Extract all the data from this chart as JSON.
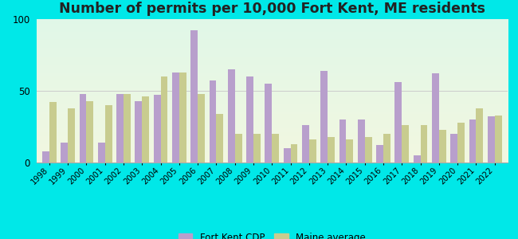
{
  "years": [
    1998,
    1999,
    2000,
    2001,
    2002,
    2003,
    2004,
    2005,
    2006,
    2007,
    2008,
    2009,
    2010,
    2011,
    2012,
    2013,
    2014,
    2015,
    2016,
    2017,
    2018,
    2019,
    2020,
    2021,
    2022
  ],
  "fort_kent": [
    8,
    14,
    48,
    14,
    48,
    43,
    47,
    63,
    92,
    57,
    65,
    60,
    55,
    10,
    26,
    64,
    30,
    30,
    12,
    56,
    5,
    62,
    20,
    30,
    32
  ],
  "maine_avg": [
    42,
    38,
    43,
    40,
    48,
    46,
    60,
    63,
    48,
    34,
    20,
    20,
    20,
    13,
    16,
    18,
    16,
    18,
    20,
    26,
    26,
    23,
    28,
    38,
    33
  ],
  "fort_kent_color": "#b89fcc",
  "maine_avg_color": "#c8cc8f",
  "title": "Number of permits per 10,000 Fort Kent, ME residents",
  "ylim": [
    0,
    100
  ],
  "yticks": [
    0,
    50,
    100
  ],
  "outer_bg": "#00e8e8",
  "fort_kent_label": "Fort Kent CDP",
  "maine_avg_label": "Maine average",
  "title_fontsize": 12.5,
  "bar_width": 0.38
}
